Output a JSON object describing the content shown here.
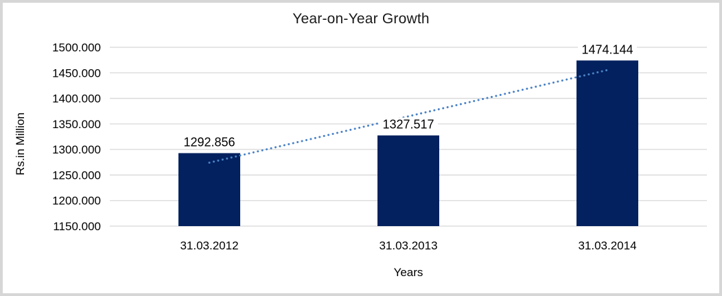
{
  "chart_data": {
    "type": "bar",
    "title": "Year-on-Year Growth",
    "xlabel": "Years",
    "ylabel": "Rs.in Million",
    "categories": [
      "31.03.2012",
      "31.03.2013",
      "31.03.2014"
    ],
    "values": [
      1292.856,
      1327.517,
      1474.144
    ],
    "data_labels": [
      "1292.856",
      "1327.517",
      "1474.144"
    ],
    "y_ticks": [
      "1500.000",
      "1450.000",
      "1400.000",
      "1350.000",
      "1300.000",
      "1250.000",
      "1200.000",
      "1150.000"
    ],
    "ylim": [
      1150,
      1500
    ],
    "grid": true,
    "legend": "none",
    "trendline": {
      "type": "linear",
      "style": "dotted",
      "color": "#4a82c6"
    },
    "colors": {
      "bar": "#03215e",
      "gridline": "#d8d8d8",
      "axis_text": "#000000",
      "frame": "#d6d6d6",
      "background": "#ffffff"
    }
  }
}
